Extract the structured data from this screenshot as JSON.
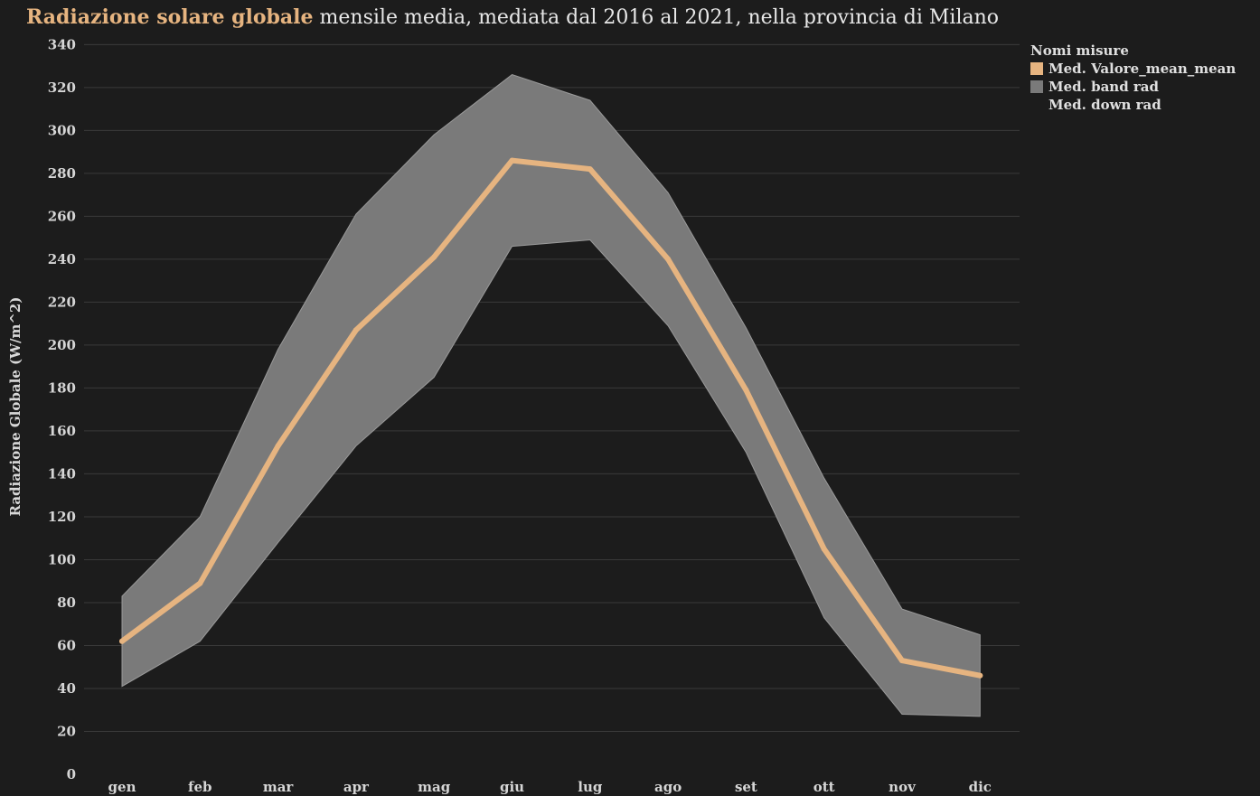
{
  "title": {
    "highlight": "Radiazione solare globale",
    "rest": " mensile media, mediata dal 2016 al 2021, nella provincia di Milano"
  },
  "colors": {
    "background": "#1c1c1c",
    "line": "#e6b480",
    "band": "#7a7a7a",
    "grid": "#3a3a3a",
    "text": "#dcdcdc"
  },
  "legend": {
    "title": "Nomi misure",
    "items": [
      {
        "label": "Med. Valore_mean_mean",
        "color": "#e6b480"
      },
      {
        "label": "Med. band rad",
        "color": "#7a7a7a"
      },
      {
        "label": "Med. down rad",
        "color": ""
      }
    ]
  },
  "chart_data": {
    "type": "area",
    "title": "Radiazione solare globale mensile media, mediata dal 2016 al 2021, nella provincia di Milano",
    "xlabel": "",
    "ylabel": "Radiazione Globale (W/m^2)",
    "categories": [
      "gen",
      "feb",
      "mar",
      "apr",
      "mag",
      "giu",
      "lug",
      "ago",
      "set",
      "ott",
      "nov",
      "dic"
    ],
    "ylim": [
      0,
      340
    ],
    "yticks": [
      0,
      20,
      40,
      60,
      80,
      100,
      120,
      140,
      160,
      180,
      200,
      220,
      240,
      260,
      280,
      300,
      320,
      340
    ],
    "grid": true,
    "legend_position": "top-right",
    "series": [
      {
        "name": "Med. Valore_mean_mean",
        "type": "line",
        "values": [
          62,
          89,
          153,
          207,
          241,
          286,
          282,
          240,
          179,
          105,
          53,
          46
        ]
      },
      {
        "name": "Med. band rad",
        "type": "band-upper",
        "values": [
          83,
          120,
          198,
          261,
          298,
          326,
          314,
          271,
          208,
          138,
          77,
          65
        ]
      },
      {
        "name": "Med. down rad",
        "type": "band-lower",
        "values": [
          41,
          62,
          108,
          153,
          185,
          246,
          249,
          209,
          150,
          73,
          28,
          27
        ]
      }
    ]
  }
}
